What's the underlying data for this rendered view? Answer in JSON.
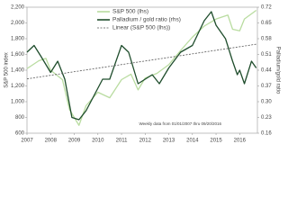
{
  "chart_data": {
    "type": "line",
    "ylabel": "S&P 500 index",
    "y2label": "Palladium/gold ratio",
    "annotation": "Weekly data from 01/01/2007 thru 09/20/2016",
    "xlim": [
      2007,
      2016.75
    ],
    "xticks": [
      2007,
      2008,
      2009,
      2010,
      2011,
      2012,
      2013,
      2014,
      2015,
      2016
    ],
    "ylim": [
      600,
      2200
    ],
    "yticks": [
      600,
      800,
      {
        "value": 1000,
        "label": "1,000"
      },
      {
        "value": 1200,
        "label": "1,200"
      },
      {
        "value": 1400,
        "label": "1,400"
      },
      {
        "value": 1600,
        "label": "1,600"
      },
      {
        "value": 1800,
        "label": "1,800"
      },
      {
        "value": 2000,
        "label": "2,000"
      },
      {
        "value": 2200,
        "label": "2,200"
      }
    ],
    "y2lim": [
      0.16,
      0.72
    ],
    "y2ticks": [
      0.16,
      0.23,
      {
        "value": 0.3,
        "label": "0.30"
      },
      0.37,
      0.44,
      0.51,
      0.58,
      0.65,
      0.72
    ],
    "grid": false,
    "legend": "top",
    "series": [
      {
        "name": "S&P 500 (lhs)",
        "color": "#b9dca0",
        "dash": false,
        "x": [
          2007,
          2007.5,
          2007.8,
          2008,
          2008.5,
          2008.8,
          2009.2,
          2009.5,
          2010,
          2010.5,
          2011,
          2011.4,
          2011.7,
          2012,
          2012.5,
          2013,
          2013.5,
          2014,
          2014.5,
          2015,
          2015.5,
          2015.7,
          2016,
          2016.2,
          2016.7
        ],
        "values": [
          1420,
          1520,
          1550,
          1400,
          1280,
          900,
          700,
          950,
          1120,
          1050,
          1280,
          1350,
          1150,
          1300,
          1360,
          1470,
          1650,
          1820,
          1960,
          2050,
          2100,
          1920,
          1900,
          2050,
          2160
        ]
      },
      {
        "name": "Palladium / gold ratio (rhs)",
        "color": "#1f4d2c",
        "dash": false,
        "axis": "y2",
        "x": [
          2007,
          2007.3,
          2007.6,
          2008,
          2008.3,
          2008.6,
          2008.9,
          2009.2,
          2009.5,
          2009.8,
          2010.2,
          2010.5,
          2011,
          2011.3,
          2011.7,
          2012,
          2012.3,
          2012.6,
          2013,
          2013.5,
          2014,
          2014.5,
          2014.8,
          2015,
          2015.4,
          2015.7,
          2015.9,
          2016,
          2016.2,
          2016.5,
          2016.7
        ],
        "values": [
          0.52,
          0.55,
          0.5,
          0.43,
          0.48,
          0.4,
          0.23,
          0.22,
          0.26,
          0.32,
          0.4,
          0.4,
          0.55,
          0.52,
          0.38,
          0.4,
          0.42,
          0.38,
          0.45,
          0.52,
          0.55,
          0.66,
          0.7,
          0.64,
          0.58,
          0.48,
          0.42,
          0.44,
          0.38,
          0.48,
          0.45
        ]
      },
      {
        "name": "Linear (S&P 500 (lhs))",
        "color": "#555555",
        "dash": true,
        "x": [
          2007,
          2016.7
        ],
        "values": [
          1290,
          1730
        ]
      }
    ]
  }
}
